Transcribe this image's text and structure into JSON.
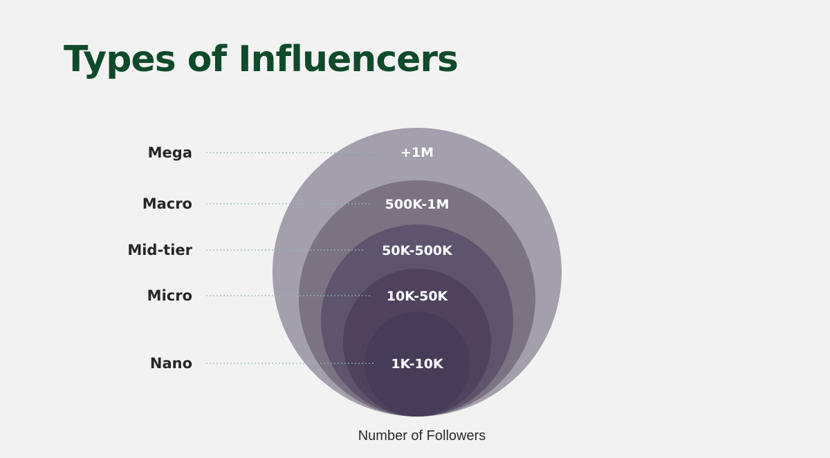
{
  "title": "Types of Influencers",
  "caption": "Number of Followers",
  "tiers": [
    {
      "name": "Mega",
      "range": "+1M",
      "color": "#a39fac"
    },
    {
      "name": "Macro",
      "range": "500K-1M",
      "color": "#7b7282"
    },
    {
      "name": "Mid-tier",
      "range": "50K-500K",
      "color": "#5e5470"
    },
    {
      "name": "Micro",
      "range": "10K-50K",
      "color": "#4e425f"
    },
    {
      "name": "Nano",
      "range": "1K-10K",
      "color": "#463b59"
    }
  ],
  "colors": {
    "title": "#0f4a2a",
    "background": "#f2f2f2",
    "leader_line": "#9db9ad"
  }
}
